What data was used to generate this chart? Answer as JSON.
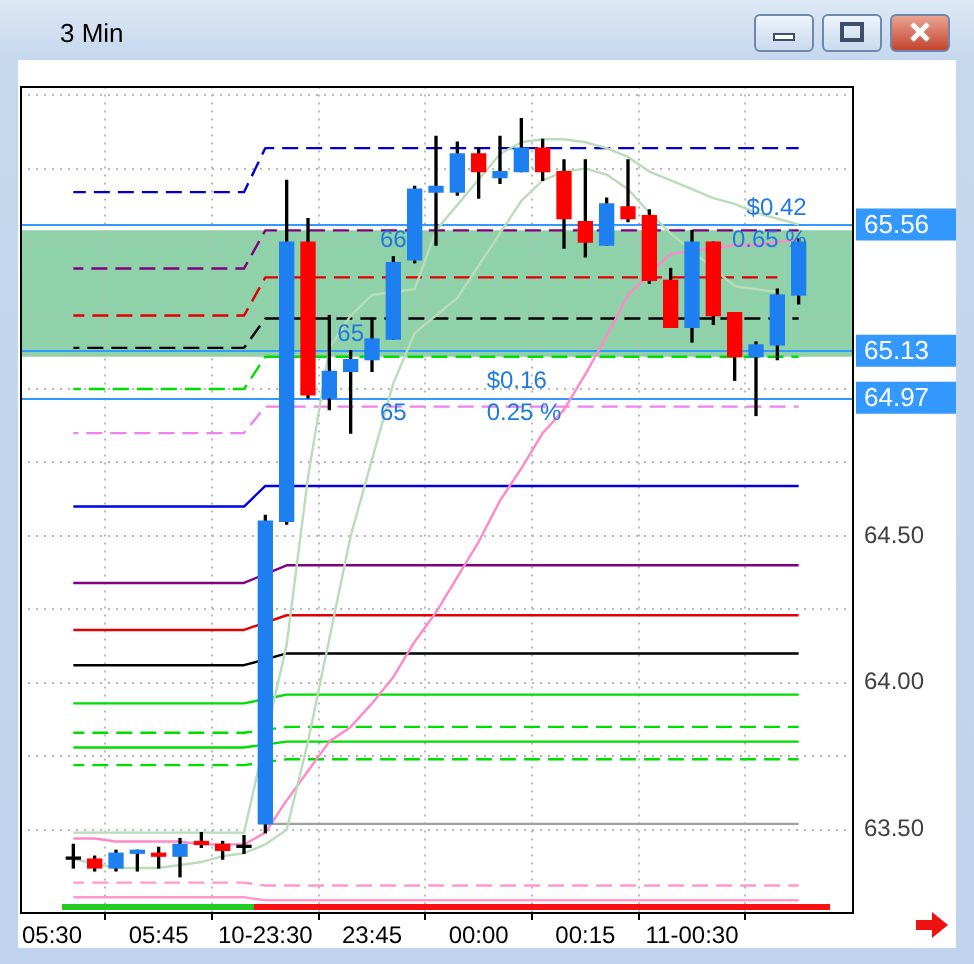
{
  "chart_data": {
    "type": "candlestick",
    "title": "3 Min",
    "categories": [
      "05:30",
      null,
      null,
      null,
      null,
      "05:45",
      null,
      null,
      null,
      null,
      "10-23:30",
      null,
      null,
      null,
      null,
      "23:45",
      null,
      null,
      null,
      null,
      "00:00",
      null,
      null,
      null,
      null,
      "00:15",
      null,
      null,
      null,
      null,
      "11-00:30",
      null,
      null,
      null,
      null,
      null
    ],
    "ohlc": [
      null,
      [
        63.4,
        63.45,
        63.37,
        63.4
      ],
      [
        63.4,
        63.41,
        63.36,
        63.37
      ],
      [
        63.37,
        63.43,
        63.36,
        63.42
      ],
      [
        63.42,
        63.43,
        63.36,
        63.43
      ],
      [
        63.42,
        63.44,
        63.37,
        63.41
      ],
      [
        63.41,
        63.47,
        63.34,
        63.45
      ],
      [
        63.46,
        63.49,
        63.44,
        63.45
      ],
      [
        63.45,
        63.46,
        63.4,
        63.43
      ],
      [
        63.44,
        63.48,
        63.42,
        63.44
      ],
      [
        63.52,
        64.57,
        63.49,
        64.55
      ],
      [
        64.55,
        65.71,
        64.54,
        65.5
      ],
      [
        65.5,
        65.58,
        64.97,
        64.98
      ],
      [
        64.97,
        65.25,
        64.93,
        65.06
      ],
      [
        65.06,
        65.13,
        64.85,
        65.1
      ],
      [
        65.1,
        65.24,
        65.06,
        65.17
      ],
      [
        65.17,
        65.45,
        65.17,
        65.43
      ],
      [
        65.44,
        65.69,
        65.43,
        65.68
      ],
      [
        65.67,
        65.86,
        65.49,
        65.69
      ],
      [
        65.67,
        65.84,
        65.66,
        65.8
      ],
      [
        65.8,
        65.82,
        65.65,
        65.74
      ],
      [
        65.72,
        65.86,
        65.7,
        65.74
      ],
      [
        65.74,
        65.92,
        65.74,
        65.82
      ],
      [
        65.82,
        65.85,
        65.71,
        65.74
      ],
      [
        65.74,
        65.78,
        65.48,
        65.58
      ],
      [
        65.57,
        65.78,
        65.45,
        65.5
      ],
      [
        65.49,
        65.65,
        65.49,
        65.63
      ],
      [
        65.62,
        65.78,
        65.57,
        65.58
      ],
      [
        65.59,
        65.61,
        65.36,
        65.37
      ],
      [
        65.37,
        65.41,
        65.21,
        65.21
      ],
      [
        65.21,
        65.54,
        65.16,
        65.5
      ],
      [
        65.5,
        65.5,
        65.22,
        65.25
      ],
      [
        65.26,
        65.26,
        65.03,
        65.11
      ],
      [
        65.11,
        65.16,
        64.91,
        65.15
      ],
      [
        65.15,
        65.34,
        65.1,
        65.32
      ],
      [
        65.32,
        65.51,
        65.29,
        65.5
      ]
    ],
    "colors": [
      null,
      "#000000",
      "#ff0000",
      "#1e80f0",
      "#1e80f0",
      "#ff0000",
      "#1e80f0",
      "#ff0000",
      "#ff0000",
      "#000000",
      "#1e80f0",
      "#1e80f0",
      "#ff0000",
      "#1e80f0",
      "#1e80f0",
      "#1e80f0",
      "#1e80f0",
      "#1e80f0",
      "#1e80f0",
      "#1e80f0",
      "#ff0000",
      "#1e80f0",
      "#1e80f0",
      "#ff0000",
      "#ff0000",
      "#ff0000",
      "#1e80f0",
      "#ff0000",
      "#ff0000",
      "#ff0000",
      "#1e80f0",
      "#ff0000",
      "#ff0000",
      "#1e80f0",
      "#1e80f0",
      "#1e80f0"
    ],
    "series": [
      {
        "type": "line",
        "color": "#b9dcb9",
        "values": [
          null,
          63.49,
          63.49,
          63.49,
          63.49,
          63.49,
          63.49,
          63.49,
          63.49,
          63.49,
          null,
          64.13,
          64.7,
          65.14,
          65.25,
          65.32,
          null,
          65.34,
          65.54,
          null,
          null,
          65.8,
          65.84,
          65.85,
          65.85,
          65.84,
          65.82,
          65.79,
          65.74,
          65.71,
          65.68,
          65.65,
          65.63,
          65.6,
          65.58,
          65.56
        ]
      },
      {
        "type": "line",
        "color": "#b9dcb9",
        "values": [
          null,
          63.4,
          null,
          63.37,
          63.37,
          63.37,
          63.38,
          63.39,
          63.41,
          63.42,
          63.45,
          63.5,
          63.8,
          64.15,
          64.5,
          64.76,
          65.02,
          65.19,
          65.25,
          65.31,
          65.42,
          65.53,
          65.64,
          65.71,
          65.74,
          65.75,
          65.73,
          65.68,
          65.6,
          65.53,
          null,
          null,
          65.35,
          65.34,
          65.33,
          null
        ]
      },
      {
        "type": "line",
        "color": "#ff88c8",
        "values": [
          null,
          63.47,
          63.47,
          63.46,
          63.46,
          63.46,
          63.46,
          63.45,
          63.45,
          63.45,
          63.49,
          63.6,
          63.7,
          63.8,
          63.85,
          63.93,
          64.02,
          64.14,
          64.24,
          64.36,
          64.48,
          64.62,
          64.73,
          64.85,
          64.93,
          65.05,
          65.18,
          65.32,
          null,
          65.46,
          null,
          null,
          65.49,
          65.49,
          65.5,
          65.51
        ]
      },
      {
        "type": "line",
        "color": "#0000d0",
        "line_style": "dashed",
        "values": [
          null,
          65.67,
          65.67,
          65.67,
          65.67,
          65.67,
          65.67,
          65.67,
          65.67,
          65.67,
          65.82,
          65.82,
          65.82,
          65.82,
          65.82,
          65.82,
          65.82,
          65.82,
          65.82,
          65.82,
          65.82,
          65.82,
          65.82,
          65.82,
          65.82,
          65.82,
          65.82,
          65.82,
          65.82,
          65.82,
          65.82,
          65.82,
          65.82,
          65.82,
          65.82,
          65.82
        ]
      },
      {
        "type": "line",
        "color": "#800080",
        "line_style": "dashed",
        "values": [
          null,
          65.41,
          65.41,
          65.41,
          65.41,
          65.41,
          65.41,
          65.41,
          65.41,
          65.41,
          65.54,
          65.54,
          65.54,
          65.54,
          65.54,
          65.54,
          65.54,
          null,
          65.54,
          65.54,
          65.54,
          65.54,
          65.54,
          65.54,
          65.54,
          null,
          null,
          65.54,
          null,
          65.54,
          65.54,
          65.54,
          65.54,
          65.54,
          65.54,
          65.54
        ]
      },
      {
        "type": "line",
        "color": "#e00000",
        "line_style": "dashed",
        "values": [
          null,
          65.25,
          65.25,
          65.25,
          65.25,
          65.25,
          65.25,
          65.25,
          65.25,
          65.25,
          65.38,
          null,
          null,
          65.38,
          65.38,
          65.38,
          null,
          65.38,
          65.38,
          65.38,
          65.38,
          65.38,
          65.38,
          65.38,
          65.38,
          65.38,
          65.38,
          65.38,
          null,
          65.38,
          null,
          null,
          65.38,
          65.38,
          65.38,
          null
        ]
      },
      {
        "type": "line",
        "color": "#000000",
        "line_style": "dashed",
        "values": [
          null,
          65.14,
          65.14,
          65.14,
          65.14,
          65.14,
          65.14,
          65.14,
          65.14,
          65.14,
          65.24,
          null,
          null,
          65.24,
          65.24,
          65.24,
          null,
          65.24,
          65.24,
          65.24,
          65.24,
          65.24,
          65.24,
          65.24,
          65.24,
          65.24,
          65.24,
          65.24,
          65.24,
          null,
          null,
          65.24,
          null,
          65.24,
          null,
          65.24
        ]
      },
      {
        "type": "line",
        "color": "#00dd00",
        "line_style": "dashed",
        "values": [
          null,
          65.0,
          65.0,
          65.0,
          65.0,
          65.0,
          65.0,
          65.0,
          65.0,
          65.0,
          65.11,
          null,
          null,
          65.11,
          65.11,
          null,
          65.11,
          65.11,
          65.11,
          65.11,
          65.11,
          65.11,
          65.11,
          65.11,
          65.11,
          65.11,
          65.11,
          65.11,
          65.11,
          65.11,
          65.11,
          65.11,
          65.11,
          65.11,
          65.11,
          65.11
        ]
      },
      {
        "type": "line",
        "color": "#ee82ee",
        "line_style": "dashed",
        "values": [
          null,
          64.85,
          64.85,
          64.85,
          64.85,
          64.85,
          64.85,
          64.85,
          64.85,
          64.85,
          64.94,
          null,
          64.94,
          64.94,
          64.94,
          64.94,
          64.94,
          64.94,
          64.94,
          64.94,
          64.94,
          64.94,
          64.94,
          64.94,
          64.94,
          64.94,
          64.94,
          64.94,
          64.94,
          64.94,
          64.94,
          64.94,
          64.94,
          64.94,
          64.94,
          64.94
        ]
      },
      {
        "type": "line",
        "color": "#0000e0",
        "values": [
          null,
          64.6,
          64.6,
          64.6,
          64.6,
          64.6,
          64.6,
          64.6,
          64.6,
          64.6,
          64.67,
          null,
          64.67,
          64.67,
          64.67,
          64.67,
          64.67,
          64.67,
          64.67,
          64.67,
          64.67,
          64.67,
          64.67,
          64.67,
          64.67,
          64.67,
          64.67,
          64.67,
          64.67,
          64.67,
          64.67,
          64.67,
          64.67,
          64.67,
          64.67,
          64.67
        ]
      },
      {
        "type": "line",
        "color": "#800080",
        "values": [
          null,
          64.34,
          64.34,
          64.34,
          64.34,
          64.34,
          64.34,
          64.34,
          64.34,
          64.34,
          null,
          64.4,
          64.4,
          64.4,
          64.4,
          64.4,
          64.4,
          64.4,
          64.4,
          64.4,
          64.4,
          64.4,
          64.4,
          64.4,
          64.4,
          64.4,
          64.4,
          64.4,
          64.4,
          64.4,
          64.4,
          64.4,
          64.4,
          64.4,
          64.4,
          64.4
        ]
      },
      {
        "type": "line",
        "color": "#e00000",
        "values": [
          null,
          64.18,
          64.18,
          64.18,
          64.18,
          64.18,
          64.18,
          64.18,
          64.18,
          64.18,
          null,
          64.23,
          64.23,
          64.23,
          64.23,
          64.23,
          64.23,
          64.23,
          64.23,
          64.23,
          64.23,
          64.23,
          64.23,
          64.23,
          64.23,
          64.23,
          64.23,
          64.23,
          64.23,
          64.23,
          64.23,
          64.23,
          64.23,
          64.23,
          64.23,
          64.23
        ]
      },
      {
        "type": "line",
        "color": "#000000",
        "values": [
          null,
          64.06,
          64.06,
          64.06,
          64.06,
          64.06,
          64.06,
          64.06,
          64.06,
          64.06,
          null,
          64.1,
          64.1,
          64.1,
          64.1,
          64.1,
          64.1,
          64.1,
          64.1,
          64.1,
          64.1,
          64.1,
          64.1,
          64.1,
          64.1,
          64.1,
          64.1,
          64.1,
          64.1,
          64.1,
          64.1,
          64.1,
          64.1,
          64.1,
          64.1,
          64.1
        ]
      },
      {
        "type": "line",
        "color": "#00dd00",
        "values": [
          null,
          63.93,
          63.93,
          63.93,
          63.93,
          63.93,
          63.93,
          63.93,
          63.93,
          63.93,
          null,
          63.96,
          63.96,
          63.96,
          63.96,
          63.96,
          63.96,
          63.96,
          63.96,
          63.96,
          63.96,
          63.96,
          63.96,
          63.96,
          63.96,
          63.96,
          63.96,
          63.96,
          63.96,
          63.96,
          63.96,
          63.96,
          63.96,
          63.96,
          63.96,
          63.96
        ]
      },
      {
        "type": "line",
        "color": "#00dd00",
        "line_style": "dashed",
        "values": [
          null,
          63.83,
          63.83,
          63.83,
          63.83,
          63.83,
          63.83,
          63.83,
          63.83,
          63.83,
          null,
          63.85,
          63.85,
          63.85,
          63.85,
          63.85,
          63.85,
          63.85,
          63.85,
          63.85,
          63.85,
          63.85,
          63.85,
          63.85,
          63.85,
          63.85,
          63.85,
          63.85,
          63.85,
          63.85,
          63.85,
          63.85,
          63.85,
          63.85,
          63.85,
          63.85
        ]
      },
      {
        "type": "line",
        "color": "#00dd00",
        "values": [
          null,
          63.78,
          63.78,
          63.78,
          63.78,
          63.78,
          63.78,
          63.78,
          63.78,
          63.78,
          null,
          63.8,
          63.8,
          63.8,
          63.8,
          63.8,
          63.8,
          63.8,
          63.8,
          63.8,
          63.8,
          63.8,
          63.8,
          63.8,
          63.8,
          63.8,
          63.8,
          63.8,
          63.8,
          63.8,
          63.8,
          63.8,
          63.8,
          63.8,
          63.8,
          63.8
        ]
      },
      {
        "type": "line",
        "color": "#00dd00",
        "line_style": "dashed",
        "values": [
          null,
          63.72,
          63.72,
          63.72,
          63.72,
          63.72,
          63.72,
          63.72,
          63.72,
          63.72,
          null,
          63.74,
          63.74,
          63.74,
          63.74,
          63.74,
          63.74,
          63.74,
          63.74,
          63.74,
          63.74,
          63.74,
          63.74,
          63.74,
          63.74,
          63.74,
          63.74,
          63.74,
          63.74,
          63.74,
          63.74,
          63.74,
          63.74,
          63.74,
          63.74,
          63.74
        ]
      },
      {
        "type": "line",
        "color": "#a0a0a0",
        "values": [
          null,
          null,
          null,
          null,
          null,
          null,
          null,
          null,
          null,
          null,
          63.52,
          63.52,
          63.52,
          63.52,
          63.52,
          63.52,
          63.52,
          63.52,
          63.52,
          63.52,
          63.52,
          63.52,
          63.52,
          63.52,
          63.52,
          63.52,
          63.52,
          63.52,
          63.52,
          63.52,
          63.52,
          63.52,
          63.52,
          63.52,
          63.52,
          63.52
        ]
      },
      {
        "type": "line",
        "color": "#ff99cc",
        "line_style": "dashed",
        "values": [
          null,
          63.32,
          63.32,
          63.32,
          63.32,
          63.32,
          63.32,
          63.32,
          63.32,
          63.32,
          63.31,
          63.31,
          63.31,
          63.31,
          63.31,
          63.31,
          63.31,
          63.31,
          63.31,
          63.31,
          63.31,
          63.31,
          63.31,
          63.31,
          63.31,
          63.31,
          63.31,
          63.31,
          63.31,
          63.31,
          63.31,
          63.31,
          63.31,
          63.31,
          63.31,
          63.31
        ]
      },
      {
        "type": "line",
        "color": "#ff99cc",
        "values": [
          null,
          63.27,
          63.27,
          63.27,
          63.27,
          63.27,
          63.27,
          63.27,
          63.27,
          63.27,
          63.26,
          63.26,
          63.26,
          63.26,
          63.26,
          63.26,
          63.26,
          63.26,
          63.26,
          63.26,
          63.26,
          63.26,
          63.26,
          63.26,
          63.26,
          63.26,
          63.26,
          63.26,
          63.26,
          63.26,
          63.26,
          63.26,
          63.26,
          63.26,
          63.26,
          63.26
        ]
      }
    ],
    "ylim": [
      63.22,
      66.03
    ],
    "yticks": [
      {
        "value": 63.5,
        "label": "63.50"
      },
      {
        "value": 63.75,
        "label": null
      },
      {
        "value": 64,
        "label": "64.00"
      },
      {
        "value": 64.25,
        "label": null
      },
      {
        "value": 64.5,
        "label": "64.50"
      },
      {
        "value": 64.75,
        "label": null
      },
      {
        "value": 65,
        "label": null
      },
      {
        "value": 65.25,
        "label": null
      },
      {
        "value": 65.5,
        "label": null
      },
      {
        "value": 65.75,
        "label": null
      },
      {
        "value": 66,
        "label": null
      }
    ],
    "grid": true,
    "bands": [
      {
        "axis": "y",
        "from": 65.11,
        "to": 65.54,
        "color": "#8fd1a8"
      }
    ],
    "ref_lines": [
      {
        "axis": "y",
        "value": 65.56,
        "label": "65.56",
        "color": "#3399ff"
      },
      {
        "axis": "y",
        "value": 65.13,
        "label": "65.13",
        "color": "#3399ff"
      },
      {
        "axis": "y",
        "value": 64.97,
        "label": "64.97",
        "color": "#3399ff"
      }
    ],
    "annotations": [
      {
        "text": "$0.42",
        "y": 65.56
      },
      {
        "text": "0.65 %",
        "y": 65.56
      },
      {
        "text": "66",
        "x": "23:45",
        "y": 65.56
      },
      {
        "text": "65",
        "x": "23:45",
        "y": 65.13
      },
      {
        "text": "$0.16",
        "x": "00:00",
        "y": 64.97
      },
      {
        "text": "0.25 %",
        "x": "00:00",
        "y": 64.97
      },
      {
        "text": "65",
        "x": "23:45",
        "y": 64.97
      }
    ]
  }
}
